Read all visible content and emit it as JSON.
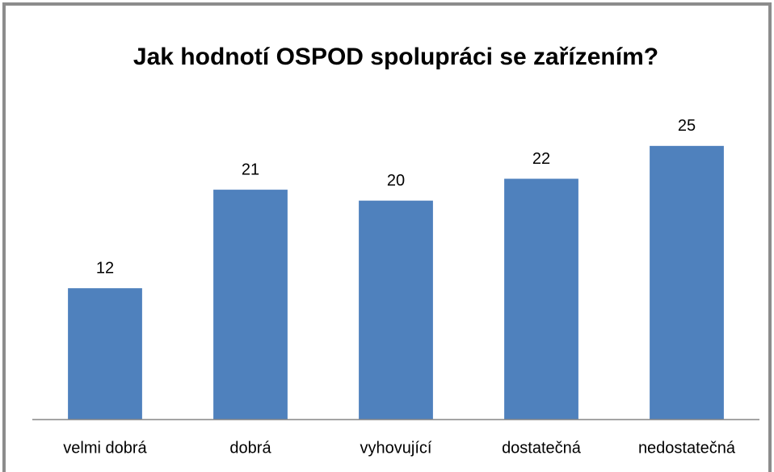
{
  "chart_data": {
    "type": "bar",
    "title": "Jak hodnotí OSPOD spolupráci se zařízením?",
    "categories": [
      "velmi dobrá",
      "dobrá",
      "vyhovující",
      "dostatečná",
      "nedostatečná"
    ],
    "values": [
      12,
      21,
      20,
      22,
      25
    ],
    "color": "#4f81bd",
    "ylim": [
      0,
      30
    ]
  }
}
